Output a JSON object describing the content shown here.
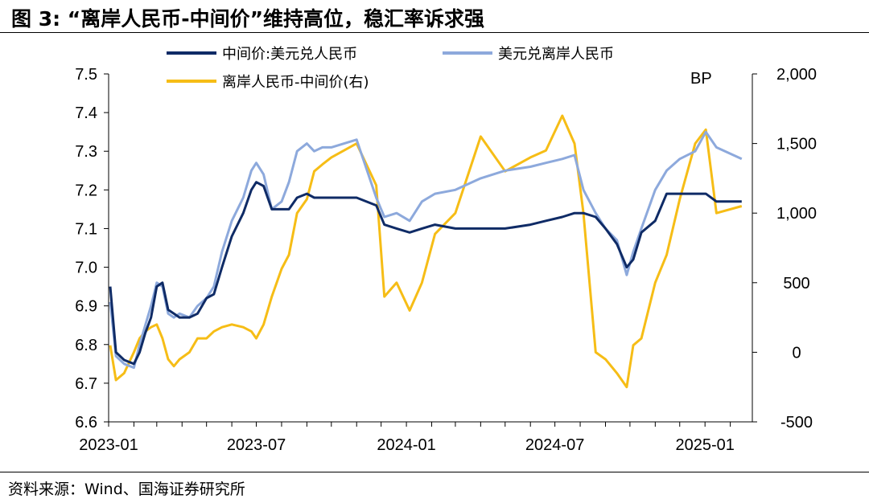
{
  "figure": {
    "title": "图 3: “离岸人民币-中间价”维持高位，稳汇率诉求强",
    "source": "资料来源：Wind、国海证券研究所"
  },
  "colors": {
    "mid_rate": "#0f2b66",
    "offshore_rate": "#8da9dc",
    "spread": "#f6bd16"
  },
  "chart_data": {
    "type": "line",
    "title": "",
    "x_ticks": [
      "2023-01",
      "2023-07",
      "2024-01",
      "2024-07",
      "2025-01"
    ],
    "y_left": {
      "range": [
        6.6,
        7.5
      ],
      "ticks": [
        "7.5",
        "7.4",
        "7.3",
        "7.2",
        "7.1",
        "7.0",
        "6.9",
        "6.8",
        "6.7",
        "6.6"
      ]
    },
    "y_right": {
      "label": "BP",
      "range": [
        -500,
        2000
      ],
      "ticks": [
        "2,000",
        "1,500",
        "1,000",
        "500",
        "0",
        "-500"
      ]
    },
    "grid": false,
    "legend_position": "top",
    "series": [
      {
        "name": "中间价:美元兑人民币",
        "axis": "left",
        "points": [
          [
            "2023-01-03",
            6.95
          ],
          [
            "2023-01-10",
            6.78
          ],
          [
            "2023-01-20",
            6.76
          ],
          [
            "2023-02-01",
            6.75
          ],
          [
            "2023-02-08",
            6.78
          ],
          [
            "2023-02-15",
            6.83
          ],
          [
            "2023-02-22",
            6.87
          ],
          [
            "2023-03-01",
            6.95
          ],
          [
            "2023-03-08",
            6.96
          ],
          [
            "2023-03-15",
            6.89
          ],
          [
            "2023-03-22",
            6.88
          ],
          [
            "2023-03-29",
            6.87
          ],
          [
            "2023-04-10",
            6.87
          ],
          [
            "2023-04-20",
            6.88
          ],
          [
            "2023-05-01",
            6.92
          ],
          [
            "2023-05-10",
            6.93
          ],
          [
            "2023-05-20",
            7.0
          ],
          [
            "2023-06-01",
            7.08
          ],
          [
            "2023-06-15",
            7.14
          ],
          [
            "2023-06-25",
            7.2
          ],
          [
            "2023-07-01",
            7.22
          ],
          [
            "2023-07-10",
            7.21
          ],
          [
            "2023-07-20",
            7.15
          ],
          [
            "2023-08-01",
            7.15
          ],
          [
            "2023-08-10",
            7.15
          ],
          [
            "2023-08-20",
            7.18
          ],
          [
            "2023-09-01",
            7.19
          ],
          [
            "2023-09-10",
            7.18
          ],
          [
            "2023-09-20",
            7.18
          ],
          [
            "2023-10-01",
            7.18
          ],
          [
            "2023-11-01",
            7.18
          ],
          [
            "2023-11-25",
            7.16
          ],
          [
            "2023-12-05",
            7.11
          ],
          [
            "2023-12-20",
            7.1
          ],
          [
            "2024-01-05",
            7.09
          ],
          [
            "2024-01-20",
            7.1
          ],
          [
            "2024-02-05",
            7.11
          ],
          [
            "2024-03-01",
            7.1
          ],
          [
            "2024-04-01",
            7.1
          ],
          [
            "2024-05-01",
            7.1
          ],
          [
            "2024-06-01",
            7.11
          ],
          [
            "2024-06-20",
            7.12
          ],
          [
            "2024-07-10",
            7.13
          ],
          [
            "2024-07-25",
            7.14
          ],
          [
            "2024-08-05",
            7.14
          ],
          [
            "2024-08-20",
            7.13
          ],
          [
            "2024-09-01",
            7.1
          ],
          [
            "2024-09-15",
            7.06
          ],
          [
            "2024-09-27",
            7.0
          ],
          [
            "2024-10-05",
            7.02
          ],
          [
            "2024-10-15",
            7.09
          ],
          [
            "2024-11-01",
            7.12
          ],
          [
            "2024-11-15",
            7.19
          ],
          [
            "2024-12-01",
            7.19
          ],
          [
            "2024-12-20",
            7.19
          ],
          [
            "2025-01-02",
            7.19
          ],
          [
            "2025-01-15",
            7.17
          ],
          [
            "2025-02-15",
            7.17
          ]
        ]
      },
      {
        "name": "美元兑离岸人民币",
        "axis": "left",
        "points": [
          [
            "2023-01-03",
            6.91
          ],
          [
            "2023-01-10",
            6.77
          ],
          [
            "2023-01-20",
            6.75
          ],
          [
            "2023-02-01",
            6.74
          ],
          [
            "2023-02-08",
            6.8
          ],
          [
            "2023-02-15",
            6.85
          ],
          [
            "2023-02-22",
            6.9
          ],
          [
            "2023-03-01",
            6.96
          ],
          [
            "2023-03-08",
            6.95
          ],
          [
            "2023-03-15",
            6.88
          ],
          [
            "2023-03-22",
            6.87
          ],
          [
            "2023-03-29",
            6.88
          ],
          [
            "2023-04-10",
            6.87
          ],
          [
            "2023-04-20",
            6.9
          ],
          [
            "2023-05-01",
            6.92
          ],
          [
            "2023-05-10",
            6.95
          ],
          [
            "2023-05-20",
            7.04
          ],
          [
            "2023-06-01",
            7.12
          ],
          [
            "2023-06-15",
            7.18
          ],
          [
            "2023-06-25",
            7.25
          ],
          [
            "2023-07-01",
            7.27
          ],
          [
            "2023-07-10",
            7.24
          ],
          [
            "2023-07-20",
            7.15
          ],
          [
            "2023-08-01",
            7.17
          ],
          [
            "2023-08-10",
            7.22
          ],
          [
            "2023-08-20",
            7.3
          ],
          [
            "2023-09-01",
            7.32
          ],
          [
            "2023-09-10",
            7.3
          ],
          [
            "2023-09-20",
            7.31
          ],
          [
            "2023-10-01",
            7.31
          ],
          [
            "2023-11-01",
            7.33
          ],
          [
            "2023-11-25",
            7.18
          ],
          [
            "2023-12-05",
            7.13
          ],
          [
            "2023-12-20",
            7.14
          ],
          [
            "2024-01-05",
            7.12
          ],
          [
            "2024-01-20",
            7.17
          ],
          [
            "2024-02-05",
            7.19
          ],
          [
            "2024-03-01",
            7.2
          ],
          [
            "2024-04-01",
            7.23
          ],
          [
            "2024-05-01",
            7.25
          ],
          [
            "2024-06-01",
            7.26
          ],
          [
            "2024-06-20",
            7.27
          ],
          [
            "2024-07-10",
            7.28
          ],
          [
            "2024-07-25",
            7.29
          ],
          [
            "2024-08-05",
            7.2
          ],
          [
            "2024-08-20",
            7.14
          ],
          [
            "2024-09-01",
            7.1
          ],
          [
            "2024-09-15",
            7.07
          ],
          [
            "2024-09-27",
            6.98
          ],
          [
            "2024-10-05",
            7.04
          ],
          [
            "2024-10-15",
            7.1
          ],
          [
            "2024-11-01",
            7.2
          ],
          [
            "2024-11-15",
            7.25
          ],
          [
            "2024-12-01",
            7.28
          ],
          [
            "2024-12-20",
            7.3
          ],
          [
            "2025-01-02",
            7.35
          ],
          [
            "2025-01-15",
            7.31
          ],
          [
            "2025-02-15",
            7.28
          ]
        ]
      },
      {
        "name": "离岸人民币-中间价(右)",
        "axis": "right",
        "points": [
          [
            "2023-01-03",
            50
          ],
          [
            "2023-01-10",
            -200
          ],
          [
            "2023-01-20",
            -150
          ],
          [
            "2023-02-01",
            0
          ],
          [
            "2023-02-08",
            100
          ],
          [
            "2023-02-15",
            150
          ],
          [
            "2023-02-22",
            180
          ],
          [
            "2023-03-01",
            200
          ],
          [
            "2023-03-08",
            100
          ],
          [
            "2023-03-15",
            -50
          ],
          [
            "2023-03-22",
            -100
          ],
          [
            "2023-03-29",
            -50
          ],
          [
            "2023-04-10",
            0
          ],
          [
            "2023-04-20",
            100
          ],
          [
            "2023-05-01",
            100
          ],
          [
            "2023-05-10",
            150
          ],
          [
            "2023-05-20",
            180
          ],
          [
            "2023-06-01",
            200
          ],
          [
            "2023-06-15",
            180
          ],
          [
            "2023-06-25",
            150
          ],
          [
            "2023-07-01",
            100
          ],
          [
            "2023-07-10",
            200
          ],
          [
            "2023-07-20",
            400
          ],
          [
            "2023-08-01",
            600
          ],
          [
            "2023-08-10",
            700
          ],
          [
            "2023-08-20",
            1000
          ],
          [
            "2023-09-01",
            1100
          ],
          [
            "2023-09-10",
            1300
          ],
          [
            "2023-09-20",
            1350
          ],
          [
            "2023-10-01",
            1400
          ],
          [
            "2023-11-01",
            1500
          ],
          [
            "2023-11-25",
            1200
          ],
          [
            "2023-12-05",
            400
          ],
          [
            "2023-12-20",
            500
          ],
          [
            "2024-01-05",
            300
          ],
          [
            "2024-01-20",
            500
          ],
          [
            "2024-02-05",
            850
          ],
          [
            "2024-03-01",
            1000
          ],
          [
            "2024-04-01",
            1550
          ],
          [
            "2024-05-01",
            1300
          ],
          [
            "2024-06-01",
            1400
          ],
          [
            "2024-06-20",
            1450
          ],
          [
            "2024-07-10",
            1700
          ],
          [
            "2024-07-25",
            1500
          ],
          [
            "2024-08-05",
            1000
          ],
          [
            "2024-08-20",
            0
          ],
          [
            "2024-09-01",
            -50
          ],
          [
            "2024-09-15",
            -150
          ],
          [
            "2024-09-27",
            -250
          ],
          [
            "2024-10-05",
            50
          ],
          [
            "2024-10-15",
            100
          ],
          [
            "2024-11-01",
            500
          ],
          [
            "2024-11-15",
            700
          ],
          [
            "2024-12-01",
            1100
          ],
          [
            "2024-12-20",
            1500
          ],
          [
            "2025-01-02",
            1600
          ],
          [
            "2025-01-15",
            1000
          ],
          [
            "2025-02-15",
            1050
          ]
        ]
      }
    ]
  }
}
